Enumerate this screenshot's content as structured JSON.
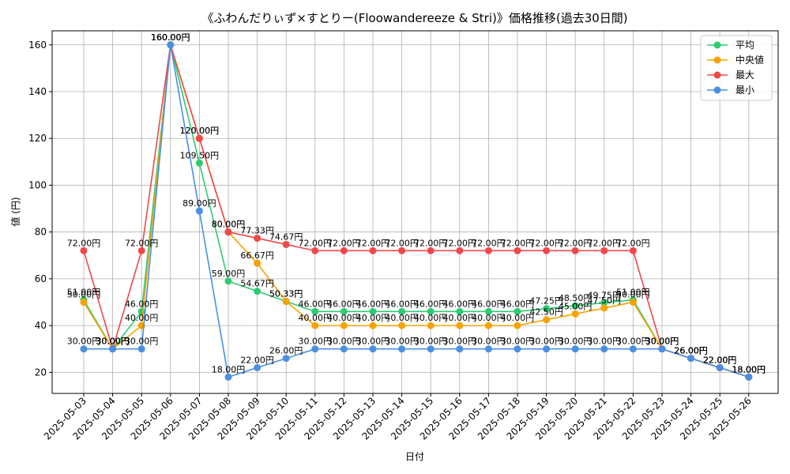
{
  "chart_data": {
    "type": "line",
    "title": "《ふわんだりぃず×すとりー(Floowandereeze & Stri)》価格推移(過去30日間)",
    "xlabel": "日付",
    "ylabel": "値 (円)",
    "ylim": [
      11,
      166
    ],
    "yticks": [
      20,
      40,
      60,
      80,
      100,
      120,
      140,
      160
    ],
    "grid": true,
    "legend_position": "top-right",
    "value_suffix": "円",
    "categories": [
      "2025-05-03",
      "2025-05-04",
      "2025-05-05",
      "2025-05-06",
      "2025-05-07",
      "2025-05-08",
      "2025-05-09",
      "2025-05-10",
      "2025-05-11",
      "2025-05-12",
      "2025-05-13",
      "2025-05-14",
      "2025-05-15",
      "2025-05-16",
      "2025-05-17",
      "2025-05-18",
      "2025-05-19",
      "2025-05-20",
      "2025-05-21",
      "2025-05-22",
      "2025-05-23",
      "2025-05-24",
      "2025-05-25",
      "2025-05-26"
    ],
    "series": [
      {
        "name": "平均",
        "color": "#2ecc71",
        "values": [
          51.0,
          30.0,
          46.0,
          160.0,
          109.5,
          59.0,
          54.67,
          50.33,
          46.0,
          46.0,
          46.0,
          46.0,
          46.0,
          46.0,
          46.0,
          46.0,
          47.25,
          48.5,
          49.75,
          51.0,
          30.0,
          26.0,
          22.0,
          18.0
        ]
      },
      {
        "name": "中央値",
        "color": "#f5a300",
        "values": [
          50.0,
          30.0,
          40.0,
          160.0,
          120.0,
          80.0,
          66.67,
          50.33,
          40.0,
          40.0,
          40.0,
          40.0,
          40.0,
          40.0,
          40.0,
          40.0,
          42.5,
          45.0,
          47.5,
          50.0,
          30.0,
          26.0,
          22.0,
          18.0
        ]
      },
      {
        "name": "最大",
        "color": "#f04848",
        "values": [
          72.0,
          30.0,
          72.0,
          160.0,
          120.0,
          80.0,
          77.33,
          74.67,
          72.0,
          72.0,
          72.0,
          72.0,
          72.0,
          72.0,
          72.0,
          72.0,
          72.0,
          72.0,
          72.0,
          72.0,
          30.0,
          26.0,
          22.0,
          18.0
        ]
      },
      {
        "name": "最小",
        "color": "#4a90e2",
        "values": [
          30.0,
          30.0,
          30.0,
          160.0,
          89.0,
          18.0,
          22.0,
          26.0,
          30.0,
          30.0,
          30.0,
          30.0,
          30.0,
          30.0,
          30.0,
          30.0,
          30.0,
          30.0,
          30.0,
          30.0,
          30.0,
          26.0,
          22.0,
          18.0
        ]
      }
    ]
  }
}
